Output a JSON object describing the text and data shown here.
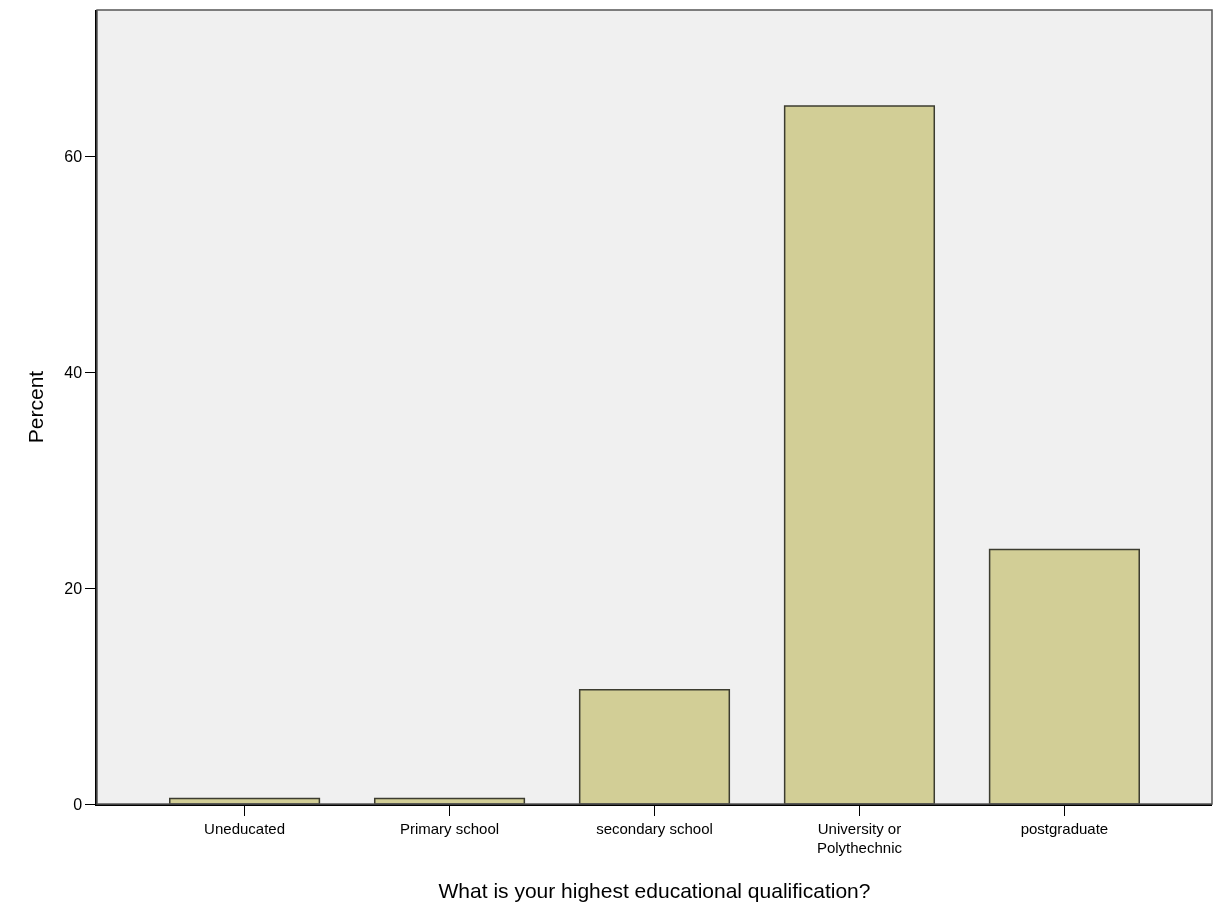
{
  "chart_data": {
    "type": "bar",
    "xlabel": "What is your highest educational qualification?",
    "ylabel": "Percent",
    "categories": [
      "Uneducated",
      "Primary school",
      "secondary school",
      "University or\nPolythechnic",
      "postgraduate"
    ],
    "values": [
      0.5,
      0.5,
      10.6,
      64.7,
      23.6
    ],
    "color": "#d2ce96",
    "ylim": [
      0,
      73.6
    ],
    "yticks": [
      0,
      20,
      40,
      60
    ],
    "grid": false,
    "legend": false
  }
}
